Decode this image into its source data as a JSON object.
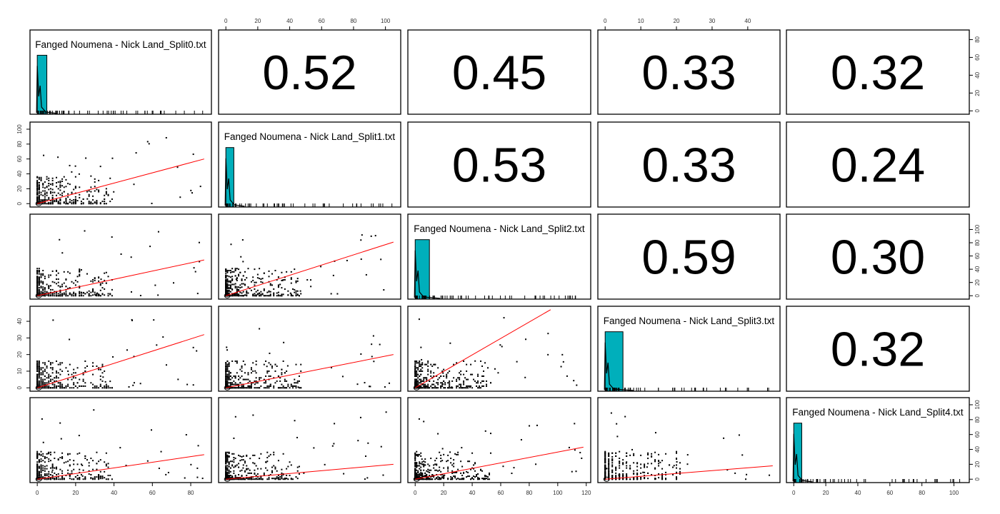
{
  "chart_data": {
    "type": "scatter-matrix",
    "variables": [
      "Fanged Noumena - Nick Land_Split0.txt",
      "Fanged Noumena - Nick Land_Split1.txt",
      "Fanged Noumena - Nick Land_Split2.txt",
      "Fanged Noumena - Nick Land_Split3.txt",
      "Fanged Noumena - Nick Land_Split4.txt"
    ],
    "ranges": [
      [
        0,
        87
      ],
      [
        0,
        105
      ],
      [
        0,
        118
      ],
      [
        0,
        47
      ],
      [
        0,
        105
      ]
    ],
    "ticks": [
      [
        0,
        20,
        40,
        60,
        80
      ],
      [
        0,
        20,
        40,
        60,
        80,
        100
      ],
      [
        0,
        20,
        40,
        60,
        80,
        100,
        120
      ],
      [
        0,
        10,
        20,
        30,
        40
      ],
      [
        0,
        20,
        40,
        60,
        80,
        100
      ]
    ],
    "diag_hist_axis_ticks": [
      [
        0,
        20,
        40,
        60,
        80
      ],
      null,
      [
        0,
        20,
        40,
        60,
        80,
        100
      ],
      null,
      [
        0,
        20,
        40,
        60,
        80,
        100
      ]
    ],
    "correlations": [
      {
        "row": 0,
        "col": 1,
        "value": "0.52"
      },
      {
        "row": 0,
        "col": 2,
        "value": "0.45"
      },
      {
        "row": 0,
        "col": 3,
        "value": "0.33"
      },
      {
        "row": 0,
        "col": 4,
        "value": "0.32"
      },
      {
        "row": 1,
        "col": 2,
        "value": "0.53"
      },
      {
        "row": 1,
        "col": 3,
        "value": "0.33"
      },
      {
        "row": 1,
        "col": 4,
        "value": "0.24"
      },
      {
        "row": 2,
        "col": 3,
        "value": "0.59"
      },
      {
        "row": 2,
        "col": 4,
        "value": "0.30"
      },
      {
        "row": 3,
        "col": 4,
        "value": "0.32"
      }
    ],
    "regression_lines": [
      {
        "row": 1,
        "col": 0,
        "from": [
          0,
          0
        ],
        "to": [
          87,
          60
        ]
      },
      {
        "row": 2,
        "col": 0,
        "from": [
          0,
          0
        ],
        "to": [
          87,
          54
        ]
      },
      {
        "row": 2,
        "col": 1,
        "from": [
          0,
          0
        ],
        "to": [
          105,
          81
        ]
      },
      {
        "row": 3,
        "col": 0,
        "from": [
          0,
          0
        ],
        "to": [
          87,
          32
        ]
      },
      {
        "row": 3,
        "col": 1,
        "from": [
          0,
          0
        ],
        "to": [
          105,
          20
        ]
      },
      {
        "row": 3,
        "col": 2,
        "from": [
          0,
          0
        ],
        "to": [
          95,
          47
        ]
      },
      {
        "row": 4,
        "col": 0,
        "from": [
          0,
          0
        ],
        "to": [
          87,
          33
        ]
      },
      {
        "row": 4,
        "col": 1,
        "from": [
          0,
          0
        ],
        "to": [
          105,
          20
        ]
      },
      {
        "row": 4,
        "col": 2,
        "from": [
          0,
          0
        ],
        "to": [
          118,
          43
        ]
      },
      {
        "row": 4,
        "col": 3,
        "from": [
          0,
          0
        ],
        "to": [
          47,
          18
        ]
      }
    ],
    "histogram_main_bin": [
      [
        0,
        5
      ],
      [
        0,
        5
      ],
      [
        0,
        10
      ],
      [
        0,
        5
      ],
      [
        0,
        5
      ]
    ],
    "colors": {
      "histogram": "#00AFBB",
      "regression": "#FF0000",
      "points": "#000000"
    }
  }
}
